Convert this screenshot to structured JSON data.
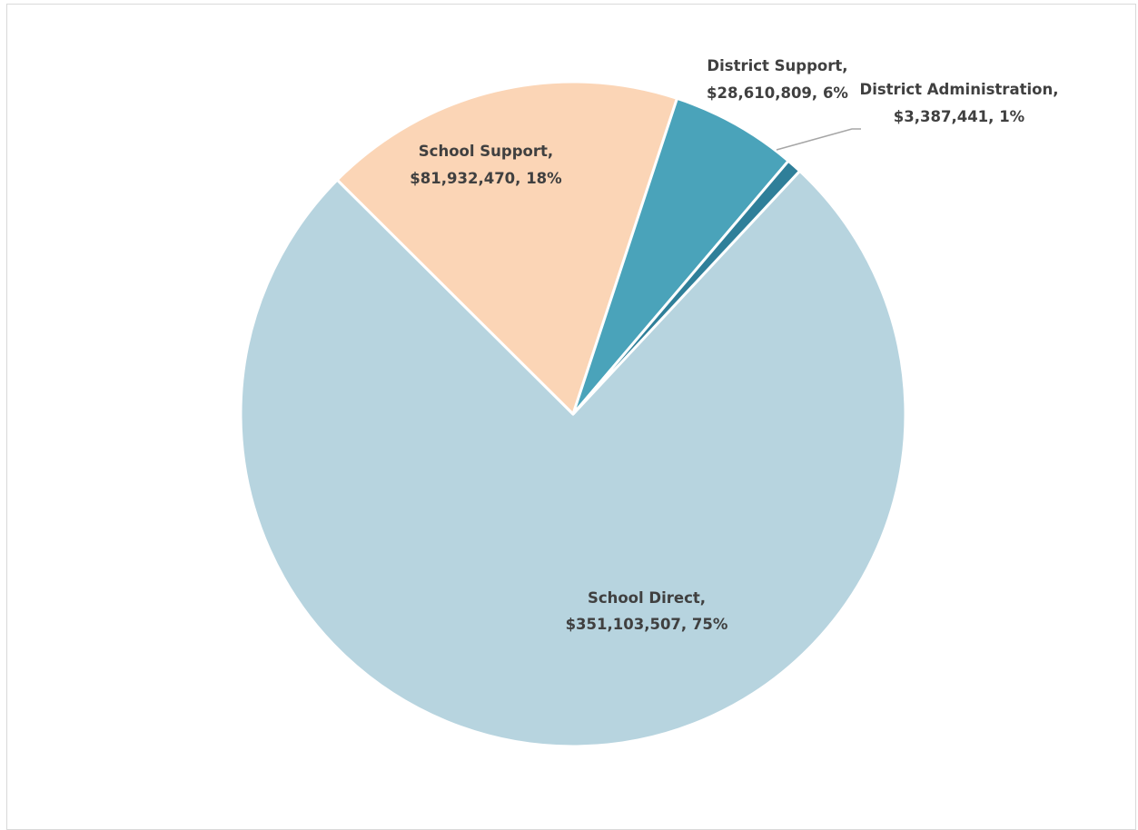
{
  "chart_data": {
    "type": "pie",
    "title": "",
    "slices": [
      {
        "label": "School Direct",
        "value": 351103507,
        "value_text": "$351,103,507",
        "percent": "75%",
        "color": "#b7d4df"
      },
      {
        "label": "School Support",
        "value": 81932470,
        "value_text": "$81,932,470",
        "percent": "18%",
        "color": "#fbd5b6"
      },
      {
        "label": "District Support",
        "value": 28610809,
        "value_text": "$28,610,809",
        "percent": "6%",
        "color": "#4aa3ba"
      },
      {
        "label": "District Administration",
        "value": 3387441,
        "value_text": "$3,387,441",
        "percent": "1%",
        "color": "#2f7f99"
      }
    ],
    "legend": "none",
    "data_labels": "category, value, percent"
  }
}
